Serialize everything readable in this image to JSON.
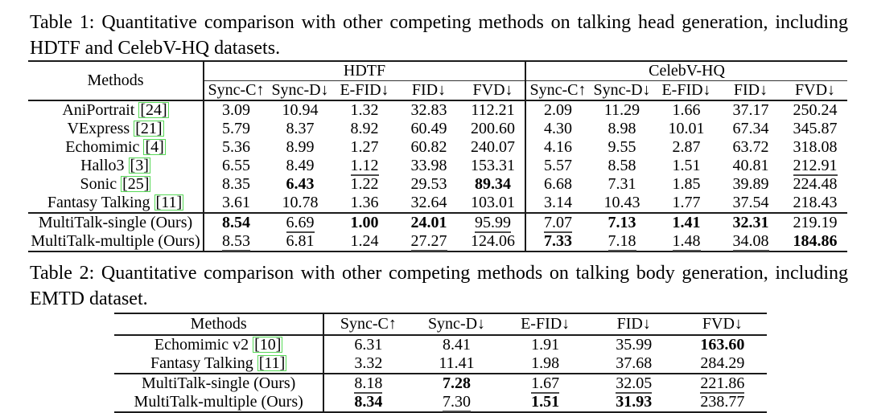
{
  "colors": {
    "citation_box": "#57d957",
    "text": "#000000",
    "rule": "#1b1b1b"
  },
  "table1": {
    "caption_lines": [
      "Table 1: Quantitative comparison with other competing methods on talking head generation, including",
      "HDTF and CelebV-HQ datasets."
    ],
    "methods_header": "Methods",
    "groups": [
      "HDTF",
      "CelebV-HQ"
    ],
    "metric_headers": [
      "Sync-C↑",
      "Sync-D↓",
      "E-FID↓",
      "FID↓",
      "FVD↓",
      "Sync-C↑",
      "Sync-D↓",
      "E-FID↓",
      "FID↓",
      "FVD↓"
    ],
    "rows": [
      {
        "method": "AniPortrait",
        "cite": "[24]",
        "values": [
          {
            "v": "3.09",
            "s": "p"
          },
          {
            "v": "10.94",
            "s": "p"
          },
          {
            "v": "1.32",
            "s": "p"
          },
          {
            "v": "32.83",
            "s": "p"
          },
          {
            "v": "112.21",
            "s": "p"
          },
          {
            "v": "2.09",
            "s": "p"
          },
          {
            "v": "11.29",
            "s": "p"
          },
          {
            "v": "1.66",
            "s": "p"
          },
          {
            "v": "37.17",
            "s": "p"
          },
          {
            "v": "250.24",
            "s": "p"
          }
        ]
      },
      {
        "method": "VExpress",
        "cite": "[21]",
        "values": [
          {
            "v": "5.79",
            "s": "p"
          },
          {
            "v": "8.37",
            "s": "p"
          },
          {
            "v": "8.92",
            "s": "p"
          },
          {
            "v": "60.49",
            "s": "p"
          },
          {
            "v": "200.60",
            "s": "p"
          },
          {
            "v": "4.30",
            "s": "p"
          },
          {
            "v": "8.98",
            "s": "p"
          },
          {
            "v": "10.01",
            "s": "p"
          },
          {
            "v": "67.34",
            "s": "p"
          },
          {
            "v": "345.87",
            "s": "p"
          }
        ]
      },
      {
        "method": "Echomimic",
        "cite": "[4]",
        "values": [
          {
            "v": "5.36",
            "s": "p"
          },
          {
            "v": "8.99",
            "s": "p"
          },
          {
            "v": "1.27",
            "s": "p"
          },
          {
            "v": "60.82",
            "s": "p"
          },
          {
            "v": "240.07",
            "s": "p"
          },
          {
            "v": "4.16",
            "s": "p"
          },
          {
            "v": "9.55",
            "s": "p"
          },
          {
            "v": "2.87",
            "s": "p"
          },
          {
            "v": "63.72",
            "s": "p"
          },
          {
            "v": "318.08",
            "s": "p"
          }
        ]
      },
      {
        "method": "Hallo3",
        "cite": "[3]",
        "values": [
          {
            "v": "6.55",
            "s": "p"
          },
          {
            "v": "8.49",
            "s": "p"
          },
          {
            "v": "1.12",
            "s": "u"
          },
          {
            "v": "33.98",
            "s": "p"
          },
          {
            "v": "153.31",
            "s": "p"
          },
          {
            "v": "5.57",
            "s": "p"
          },
          {
            "v": "8.58",
            "s": "p"
          },
          {
            "v": "1.51",
            "s": "p"
          },
          {
            "v": "40.81",
            "s": "p"
          },
          {
            "v": "212.91",
            "s": "u"
          }
        ]
      },
      {
        "method": "Sonic",
        "cite": "[25]",
        "values": [
          {
            "v": "8.35",
            "s": "p"
          },
          {
            "v": "6.43",
            "s": "b"
          },
          {
            "v": "1.22",
            "s": "p"
          },
          {
            "v": "29.53",
            "s": "p"
          },
          {
            "v": "89.34",
            "s": "b"
          },
          {
            "v": "6.68",
            "s": "p"
          },
          {
            "v": "7.31",
            "s": "p"
          },
          {
            "v": "1.85",
            "s": "p"
          },
          {
            "v": "39.89",
            "s": "p"
          },
          {
            "v": "224.48",
            "s": "p"
          }
        ]
      },
      {
        "method": "Fantasy Talking",
        "cite": "[11]",
        "values": [
          {
            "v": "3.61",
            "s": "p"
          },
          {
            "v": "10.78",
            "s": "p"
          },
          {
            "v": "1.36",
            "s": "p"
          },
          {
            "v": "32.64",
            "s": "p"
          },
          {
            "v": "103.01",
            "s": "p"
          },
          {
            "v": "3.14",
            "s": "p"
          },
          {
            "v": "10.43",
            "s": "p"
          },
          {
            "v": "1.77",
            "s": "p"
          },
          {
            "v": "37.54",
            "s": "p"
          },
          {
            "v": "218.43",
            "s": "p"
          }
        ]
      },
      {
        "method": "MultiTalk-single (Ours)",
        "cite": null,
        "ours": true,
        "values": [
          {
            "v": "8.54",
            "s": "b"
          },
          {
            "v": "6.69",
            "s": "u"
          },
          {
            "v": "1.00",
            "s": "b"
          },
          {
            "v": "24.01",
            "s": "b"
          },
          {
            "v": "95.99",
            "s": "u"
          },
          {
            "v": "7.07",
            "s": "u"
          },
          {
            "v": "7.13",
            "s": "b"
          },
          {
            "v": "1.41",
            "s": "b"
          },
          {
            "v": "32.31",
            "s": "b"
          },
          {
            "v": "219.19",
            "s": "p"
          }
        ]
      },
      {
        "method": "MultiTalk-multiple (Ours)",
        "cite": null,
        "ours": true,
        "values": [
          {
            "v": "8.53",
            "s": "u"
          },
          {
            "v": "6.81",
            "s": "p"
          },
          {
            "v": "1.24",
            "s": "p"
          },
          {
            "v": "27.27",
            "s": "u"
          },
          {
            "v": "124.06",
            "s": "p"
          },
          {
            "v": "7.33",
            "s": "b"
          },
          {
            "v": "7.18",
            "s": "u"
          },
          {
            "v": "1.48",
            "s": "u"
          },
          {
            "v": "34.08",
            "s": "u"
          },
          {
            "v": "184.86",
            "s": "b"
          }
        ]
      }
    ]
  },
  "table2": {
    "caption_lines": [
      "Table 2: Quantitative comparison with other competing methods on talking body generation, including",
      "EMTD dataset."
    ],
    "methods_header": "Methods",
    "metric_headers": [
      "Sync-C↑",
      "Sync-D↓",
      "E-FID↓",
      "FID↓",
      "FVD↓"
    ],
    "rows": [
      {
        "method": "Echomimic v2",
        "cite": "[10]",
        "values": [
          {
            "v": "6.31",
            "s": "p"
          },
          {
            "v": "8.41",
            "s": "p"
          },
          {
            "v": "1.91",
            "s": "p"
          },
          {
            "v": "35.99",
            "s": "p"
          },
          {
            "v": "163.60",
            "s": "b"
          }
        ]
      },
      {
        "method": "Fantasy Talking",
        "cite": "[11]",
        "values": [
          {
            "v": "3.32",
            "s": "p"
          },
          {
            "v": "11.41",
            "s": "p"
          },
          {
            "v": "1.98",
            "s": "p"
          },
          {
            "v": "37.68",
            "s": "p"
          },
          {
            "v": "284.29",
            "s": "p"
          }
        ]
      },
      {
        "method": "MultiTalk-single (Ours)",
        "cite": null,
        "ours": true,
        "values": [
          {
            "v": "8.18",
            "s": "u"
          },
          {
            "v": "7.28",
            "s": "b"
          },
          {
            "v": "1.67",
            "s": "u"
          },
          {
            "v": "32.05",
            "s": "u"
          },
          {
            "v": "221.86",
            "s": "u"
          }
        ]
      },
      {
        "method": "MultiTalk-multiple (Ours)",
        "cite": null,
        "ours": true,
        "values": [
          {
            "v": "8.34",
            "s": "b"
          },
          {
            "v": "7.30",
            "s": "u"
          },
          {
            "v": "1.51",
            "s": "b"
          },
          {
            "v": "31.93",
            "s": "b"
          },
          {
            "v": "238.77",
            "s": "p"
          }
        ]
      }
    ]
  }
}
